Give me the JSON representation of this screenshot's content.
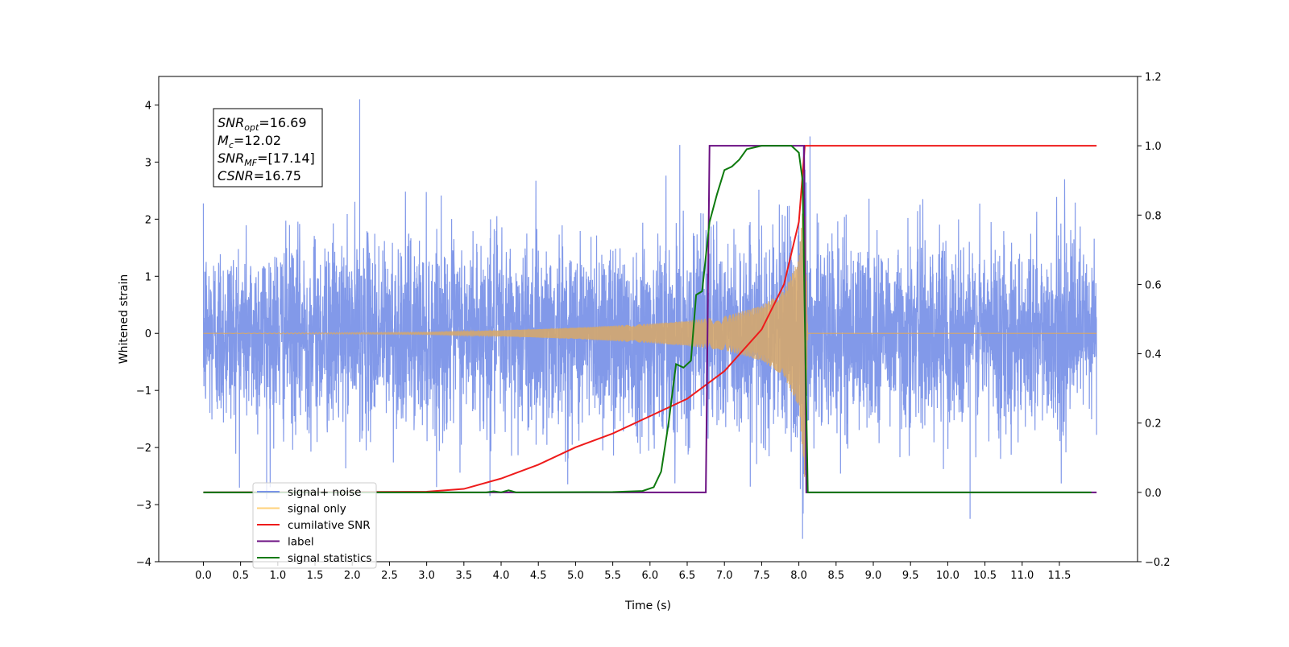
{
  "chart_data": {
    "type": "line",
    "xlabel": "Time (s)",
    "ylabel_left": "Whitened strain",
    "ylabel_right": "",
    "xlim": [
      -0.6,
      12.55
    ],
    "ylim_left": [
      -4,
      4.5
    ],
    "ylim_right": [
      -0.2,
      1.2
    ],
    "x_ticks": [
      "0.0",
      "0.5",
      "1.0",
      "1.5",
      "2.0",
      "2.5",
      "3.0",
      "3.5",
      "4.0",
      "4.5",
      "5.0",
      "5.5",
      "6.0",
      "6.5",
      "7.0",
      "7.5",
      "8.0",
      "8.5",
      "9.0",
      "9.5",
      "10.0",
      "10.5",
      "11.0",
      "11.5"
    ],
    "y_ticks_left": [
      "−4",
      "−3",
      "−2",
      "−1",
      "0",
      "1",
      "2",
      "3",
      "4"
    ],
    "y_ticks_right": [
      "−0.2",
      "0.0",
      "0.2",
      "0.4",
      "0.6",
      "0.8",
      "1.0",
      "1.2"
    ],
    "grid": false,
    "legend_position": "lower-left",
    "annotation": {
      "lines": [
        {
          "main": "SNR",
          "sub": "opt",
          "rest": "=16.69"
        },
        {
          "main": "M",
          "sub": "c",
          "rest": "=12.02"
        },
        {
          "main": "SNR",
          "sub": "MF",
          "rest": "=[17.14]"
        },
        {
          "main": "CSNR",
          "sub": "",
          "rest": "=16.75"
        }
      ]
    },
    "series": [
      {
        "name": "signal+ noise",
        "axis": "left",
        "color": "#7b94e8",
        "style": "dense noise, approximately N(0, 0.9) with peaks near ±2.5",
        "x_start": 0.0,
        "x_end": 12.0,
        "noise_peaks": [
          {
            "x": 2.1,
            "y": 4.1
          },
          {
            "x": 8.15,
            "y": 3.45
          },
          {
            "x": 6.4,
            "y": 3.3
          },
          {
            "x": 8.05,
            "y": -3.6
          },
          {
            "x": 10.3,
            "y": -3.25
          },
          {
            "x": 0.85,
            "y": -2.9
          },
          {
            "x": 3.85,
            "y": -2.85
          }
        ]
      },
      {
        "name": "signal only",
        "axis": "left",
        "color": "#d9a866",
        "style": "chirp with growing envelope",
        "envelope": {
          "x": [
            0.0,
            3.0,
            4.0,
            5.0,
            6.0,
            6.5,
            7.0,
            7.5,
            7.8,
            8.0,
            8.08,
            8.12
          ],
          "amp": [
            0.0,
            0.02,
            0.05,
            0.1,
            0.17,
            0.22,
            0.3,
            0.48,
            0.75,
            1.3,
            2.7,
            0.0
          ]
        }
      },
      {
        "name": "cumilative SNR",
        "axis": "right",
        "color": "#ee1b1b",
        "x": [
          0.0,
          3.0,
          3.5,
          4.0,
          4.5,
          5.0,
          5.5,
          6.0,
          6.5,
          7.0,
          7.5,
          7.8,
          8.0,
          8.08,
          8.12,
          12.0
        ],
        "y": [
          0.0,
          0.002,
          0.01,
          0.04,
          0.08,
          0.13,
          0.17,
          0.22,
          0.27,
          0.35,
          0.47,
          0.6,
          0.78,
          1.0,
          1.0,
          1.0
        ]
      },
      {
        "name": "label",
        "axis": "right",
        "color": "#6b0f82",
        "x": [
          0.0,
          6.75,
          6.8,
          8.07,
          8.1,
          12.0
        ],
        "y": [
          0.0,
          0.0,
          1.0,
          1.0,
          0.0,
          0.0
        ]
      },
      {
        "name": "signal statistics",
        "axis": "right",
        "color": "#0e7a0e",
        "x": [
          0.0,
          3.8,
          3.9,
          4.0,
          4.1,
          4.2,
          5.5,
          5.9,
          6.05,
          6.15,
          6.25,
          6.35,
          6.45,
          6.55,
          6.62,
          6.7,
          6.8,
          6.9,
          7.0,
          7.1,
          7.2,
          7.3,
          7.5,
          7.9,
          8.0,
          8.05,
          8.08,
          8.12,
          11.93
        ],
        "y": [
          0.0,
          0.0,
          0.003,
          0.0,
          0.006,
          0.0,
          0.001,
          0.004,
          0.015,
          0.06,
          0.2,
          0.37,
          0.36,
          0.38,
          0.57,
          0.58,
          0.78,
          0.86,
          0.93,
          0.94,
          0.96,
          0.99,
          1.0,
          1.0,
          0.98,
          0.9,
          0.5,
          0.0,
          0.0
        ]
      }
    ]
  },
  "legend": {
    "items": [
      {
        "label": "signal+ noise",
        "color": "#7b94e8"
      },
      {
        "label": "signal only",
        "color": "#ffd27a"
      },
      {
        "label": "cumilative SNR",
        "color": "#ee1b1b"
      },
      {
        "label": "label",
        "color": "#6b0f82"
      },
      {
        "label": "signal statistics",
        "color": "#0e7a0e"
      }
    ]
  }
}
